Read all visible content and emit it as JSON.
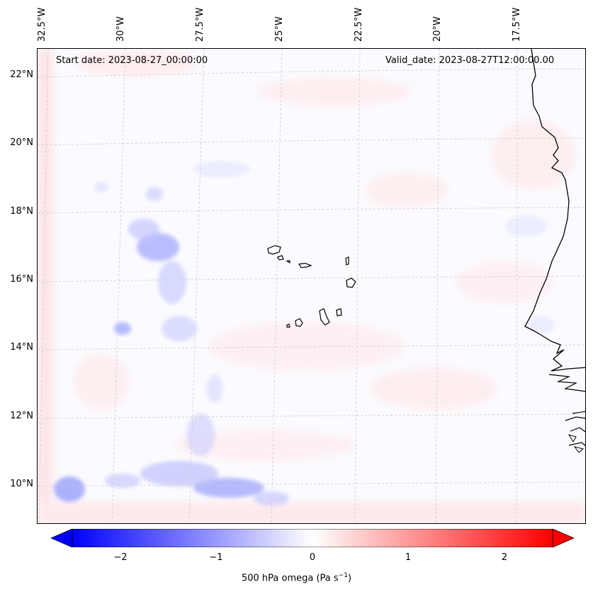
{
  "start_date_label": "Start date: 2023-08-27_00:00:00",
  "valid_date_label": "Valid_date: 2023-08-27T12:00:00.00",
  "longitude_labels": [
    "32.5°W",
    "30°W",
    "27.5°W",
    "25°W",
    "22.5°W",
    "20°W",
    "17.5°W"
  ],
  "latitude_labels": [
    "22°N",
    "20°N",
    "18°N",
    "16°N",
    "14°N",
    "12°N",
    "10°N"
  ],
  "colorbar": {
    "ticks": [
      "−2",
      "−1",
      "0",
      "1",
      "2"
    ],
    "tick_values": [
      -2,
      -1,
      0,
      1,
      2
    ],
    "range": [
      -2.5,
      2.5
    ],
    "min_color": "#0000ff",
    "mid_color": "#ffffff",
    "max_color": "#ff0000",
    "label_prefix": "500 hPa omega (Pa s",
    "label_exp": "−1",
    "label_suffix": ")"
  },
  "colors": {
    "coastline": "#000000",
    "gridline": "#c8c8c8",
    "ascent_blue": "#9aa0ff",
    "descent_red": "#ffc8c8"
  }
}
